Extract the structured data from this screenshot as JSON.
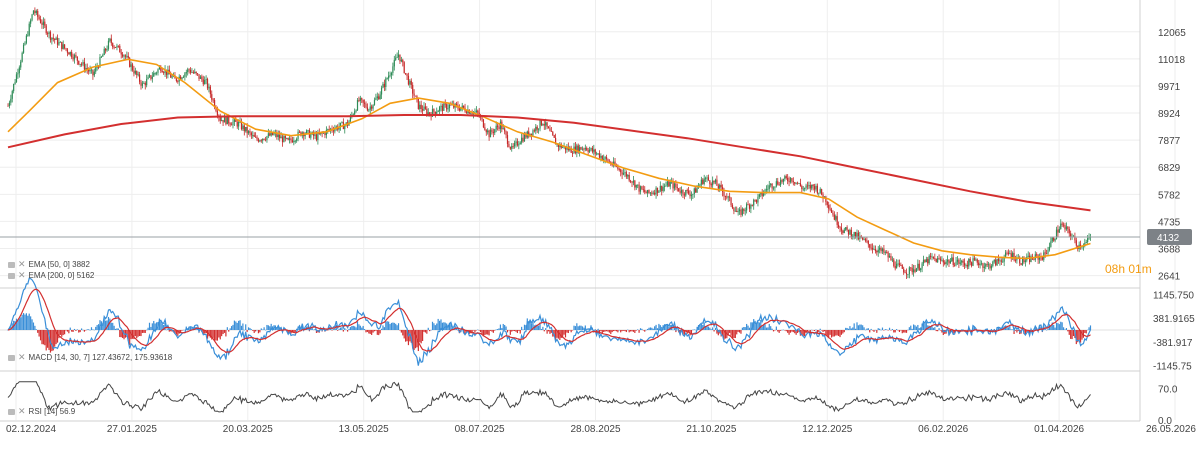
{
  "chart_data": [
    {
      "type": "candlestick",
      "panel": "price",
      "y_ticks": [
        "12065",
        "11018",
        "9971",
        "8924",
        "7877",
        "6829",
        "5782",
        "4735",
        "3688",
        "2641"
      ],
      "ylim": [
        2200,
        13100
      ],
      "current_price_label": "4132",
      "current_price": 4132,
      "countdown": "08h 01m",
      "legend": [
        {
          "label": "EMA [50, 0] 3882",
          "color": "#f39c12"
        },
        {
          "label": "EMA [200, 0] 5162",
          "color": "#d32f2f"
        }
      ],
      "price_path": [
        [
          0,
          9200
        ],
        [
          10,
          11200
        ],
        [
          18,
          12900
        ],
        [
          30,
          11900
        ],
        [
          45,
          11200
        ],
        [
          60,
          10400
        ],
        [
          72,
          11700
        ],
        [
          82,
          11200
        ],
        [
          95,
          10000
        ],
        [
          108,
          10700
        ],
        [
          118,
          10200
        ],
        [
          128,
          10600
        ],
        [
          140,
          10100
        ],
        [
          150,
          8700
        ],
        [
          163,
          8500
        ],
        [
          175,
          7900
        ],
        [
          188,
          8100
        ],
        [
          198,
          7800
        ],
        [
          208,
          8200
        ],
        [
          218,
          8000
        ],
        [
          228,
          8300
        ],
        [
          240,
          8500
        ],
        [
          248,
          9400
        ],
        [
          255,
          9100
        ],
        [
          262,
          9600
        ],
        [
          270,
          10500
        ],
        [
          276,
          11200
        ],
        [
          282,
          10300
        ],
        [
          290,
          9200
        ],
        [
          298,
          8900
        ],
        [
          305,
          9100
        ],
        [
          312,
          9200
        ],
        [
          322,
          9100
        ],
        [
          332,
          8900
        ],
        [
          340,
          8100
        ],
        [
          348,
          8500
        ],
        [
          356,
          7500
        ],
        [
          362,
          7900
        ],
        [
          370,
          8200
        ],
        [
          378,
          8600
        ],
        [
          388,
          7700
        ],
        [
          398,
          7500
        ],
        [
          408,
          7600
        ],
        [
          418,
          7300
        ],
        [
          428,
          6900
        ],
        [
          438,
          6500
        ],
        [
          446,
          6000
        ],
        [
          452,
          5800
        ],
        [
          460,
          6000
        ],
        [
          468,
          6200
        ],
        [
          476,
          5900
        ],
        [
          484,
          5800
        ],
        [
          492,
          6400
        ],
        [
          500,
          6200
        ],
        [
          508,
          5700
        ],
        [
          516,
          5000
        ],
        [
          522,
          5300
        ],
        [
          530,
          5600
        ],
        [
          538,
          6100
        ],
        [
          546,
          6300
        ],
        [
          554,
          6400
        ],
        [
          562,
          6000
        ],
        [
          570,
          6100
        ],
        [
          578,
          5600
        ],
        [
          584,
          4900
        ],
        [
          590,
          4400
        ],
        [
          596,
          4300
        ],
        [
          604,
          4000
        ],
        [
          612,
          3700
        ],
        [
          620,
          3500
        ],
        [
          628,
          3000
        ],
        [
          636,
          2800
        ],
        [
          644,
          3000
        ],
        [
          652,
          3300
        ],
        [
          660,
          3200
        ],
        [
          668,
          3200
        ],
        [
          676,
          3100
        ],
        [
          684,
          3200
        ],
        [
          692,
          3000
        ],
        [
          700,
          3200
        ],
        [
          708,
          3500
        ],
        [
          716,
          3200
        ],
        [
          724,
          3300
        ],
        [
          732,
          3400
        ],
        [
          738,
          4000
        ],
        [
          744,
          4600
        ],
        [
          750,
          4300
        ],
        [
          756,
          3800
        ],
        [
          762,
          3900
        ],
        [
          765,
          4132
        ]
      ],
      "ema50_path": [
        [
          0,
          8200
        ],
        [
          15,
          9000
        ],
        [
          35,
          10100
        ],
        [
          60,
          10700
        ],
        [
          85,
          11000
        ],
        [
          105,
          10800
        ],
        [
          125,
          10100
        ],
        [
          150,
          9000
        ],
        [
          175,
          8300
        ],
        [
          200,
          8050
        ],
        [
          225,
          8200
        ],
        [
          250,
          8700
        ],
        [
          270,
          9300
        ],
        [
          290,
          9500
        ],
        [
          312,
          9300
        ],
        [
          335,
          8800
        ],
        [
          360,
          8200
        ],
        [
          385,
          7800
        ],
        [
          410,
          7300
        ],
        [
          435,
          6800
        ],
        [
          460,
          6400
        ],
        [
          485,
          6100
        ],
        [
          510,
          5900
        ],
        [
          535,
          5850
        ],
        [
          560,
          5850
        ],
        [
          580,
          5600
        ],
        [
          600,
          4900
        ],
        [
          620,
          4400
        ],
        [
          640,
          3900
        ],
        [
          660,
          3600
        ],
        [
          680,
          3450
        ],
        [
          700,
          3350
        ],
        [
          720,
          3300
        ],
        [
          740,
          3450
        ],
        [
          765,
          3882
        ]
      ],
      "ema200_path": [
        [
          0,
          7600
        ],
        [
          40,
          8100
        ],
        [
          80,
          8500
        ],
        [
          120,
          8750
        ],
        [
          160,
          8800
        ],
        [
          200,
          8800
        ],
        [
          240,
          8800
        ],
        [
          280,
          8850
        ],
        [
          320,
          8850
        ],
        [
          360,
          8750
        ],
        [
          400,
          8550
        ],
        [
          440,
          8250
        ],
        [
          480,
          7950
        ],
        [
          520,
          7600
        ],
        [
          560,
          7250
        ],
        [
          600,
          6800
        ],
        [
          640,
          6350
        ],
        [
          680,
          5900
        ],
        [
          720,
          5500
        ],
        [
          765,
          5162
        ]
      ]
    },
    {
      "type": "macd",
      "panel": "macd",
      "y_ticks": [
        "1145.750",
        "381.9165",
        "-381.917",
        "-1145.75"
      ],
      "ylim": [
        -1300,
        1300
      ],
      "legend": "MACD [14, 30, 7] 127.43672, 175.93618",
      "series_colors": {
        "macd": "#3a8fd8",
        "signal": "#d32f2f",
        "hist_pos": "#3a8fd8",
        "hist_neg": "#d32f2f"
      }
    },
    {
      "type": "rsi",
      "panel": "rsi",
      "y_ticks": [
        "70.0",
        "0.0"
      ],
      "ylim": [
        0,
        100
      ],
      "legend": "RSI [14] 56.9",
      "last_value": 56.9
    }
  ],
  "x_axis": {
    "dates": [
      "02.12.2024",
      "27.01.2025",
      "20.03.2025",
      "13.05.2025",
      "08.07.2025",
      "28.08.2025",
      "21.10.2025",
      "12.12.2025",
      "06.02.2026",
      "01.04.2026",
      "26.05.2026"
    ]
  },
  "colors": {
    "up": "#2e8b57",
    "down": "#c62828",
    "ema50": "#f39c12",
    "ema200": "#d32f2f",
    "grid": "#eeeeee"
  }
}
